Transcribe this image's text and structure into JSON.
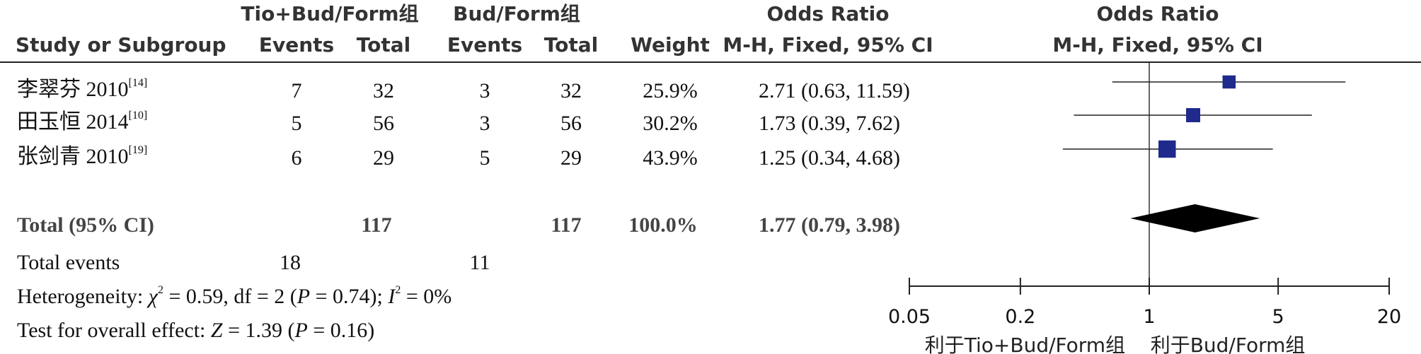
{
  "headers": {
    "group1": "Tio+Bud/Form组",
    "group2": "Bud/Form组",
    "or_title_left": "Odds Ratio",
    "or_title_right": "Odds Ratio",
    "study": "Study or Subgroup",
    "events1": "Events",
    "total1": "Total",
    "events2": "Events",
    "total2": "Total",
    "weight": "Weight",
    "method_left": "M-H, Fixed, 95% CI",
    "method_right": "M-H, Fixed, 95% CI"
  },
  "studies": [
    {
      "name": "李翠芬 2010",
      "ref": "[14]",
      "events1": "7",
      "total1": "32",
      "events2": "3",
      "total2": "32",
      "weight": "25.9%",
      "ci_text": "2.71 (0.63, 11.59)"
    },
    {
      "name": "田玉恒 2014",
      "ref": "[10]",
      "events1": "5",
      "total1": "56",
      "events2": "3",
      "total2": "56",
      "weight": "30.2%",
      "ci_text": "1.73 (0.39, 7.62)"
    },
    {
      "name": "张剑青 2010",
      "ref": "[19]",
      "events1": "6",
      "total1": "29",
      "events2": "5",
      "total2": "29",
      "weight": "43.9%",
      "ci_text": "1.25 (0.34, 4.68)"
    }
  ],
  "total": {
    "label": "Total (95% CI)",
    "total1": "117",
    "total2": "117",
    "weight": "100.0%",
    "ci_text": "1.77 (0.79, 3.98)"
  },
  "total_events": {
    "label": "Total events",
    "events1": "18",
    "events2": "11"
  },
  "heterogeneity": {
    "prefix": "Heterogeneity: ",
    "chi_symbol": "χ",
    "chi_part": " = 0.59, df = 2 (",
    "p_symbol": "P",
    "p_part": " = 0.74); ",
    "i_symbol": "I",
    "i_part": " = 0%"
  },
  "overall_effect": {
    "prefix": "Test for overall effect: ",
    "z_symbol": "Z",
    "z_part": " = 1.39 (",
    "p_symbol": "P",
    "p_part": " = 0.16)"
  },
  "chart_data": {
    "type": "forest",
    "scale": "log",
    "xlim": [
      0.05,
      20
    ],
    "ticks": [
      0.05,
      0.2,
      1,
      5,
      20
    ],
    "tick_labels": [
      "0.05",
      "0.2",
      "1",
      "5",
      "20"
    ],
    "favours_left": "利于Tio+Bud/Form组",
    "favours_right": "利于Bud/Form组",
    "marker_color": "#1f2a8c",
    "series": [
      {
        "name": "李翠芬 2010",
        "or": 2.71,
        "lower": 0.63,
        "upper": 11.59,
        "weight": 25.9
      },
      {
        "name": "田玉恒 2014",
        "or": 1.73,
        "lower": 0.39,
        "upper": 7.62,
        "weight": 30.2
      },
      {
        "name": "张剑青 2010",
        "or": 1.25,
        "lower": 0.34,
        "upper": 4.68,
        "weight": 43.9
      }
    ],
    "pooled": {
      "name": "Total (95% CI)",
      "or": 1.77,
      "lower": 0.79,
      "upper": 3.98
    }
  }
}
